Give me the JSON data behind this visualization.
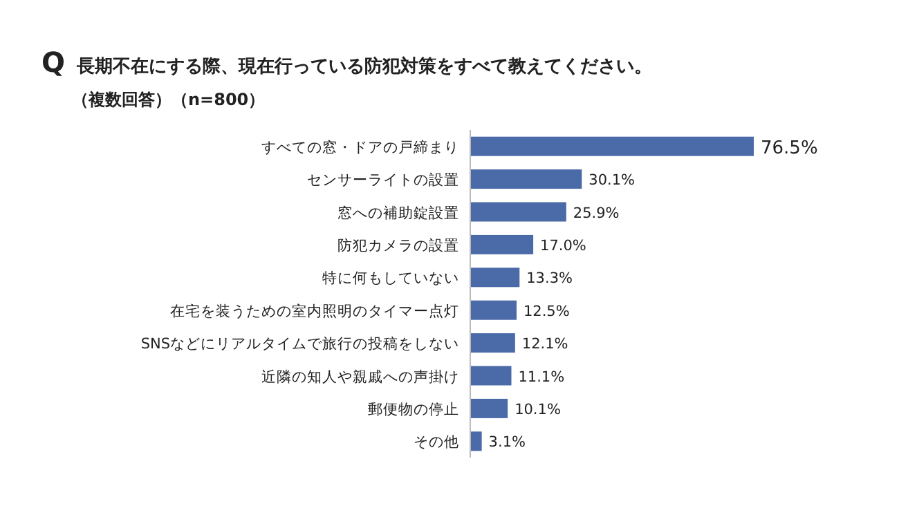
{
  "chart_data": {
    "type": "bar",
    "orientation": "horizontal",
    "title": "Q 長期不在にする際、現在行っている防犯対策をすべて教えてください。",
    "subtitle": "（複数回答）（n=800）",
    "categories": [
      "すべての窓・ドアの戸締まり",
      "センサーライトの設置",
      "窓への補助錠設置",
      "防犯カメラの設置",
      "特に何もしていない",
      "在宅を装うための室内照明のタイマー点灯",
      "SNSなどにリアルタイムで旅行の投稿をしない",
      "近隣の知人や親戚への声掛け",
      "郵便物の停止",
      "その他"
    ],
    "values": [
      76.5,
      30.1,
      25.9,
      17.0,
      13.3,
      12.5,
      12.1,
      11.1,
      10.1,
      3.1
    ],
    "value_labels": [
      "76.5%",
      "30.1%",
      "25.9%",
      "17.0%",
      "13.3%",
      "12.5%",
      "12.1%",
      "11.1%",
      "10.1%",
      "3.1%"
    ],
    "color": "#4a6aa8"
  }
}
